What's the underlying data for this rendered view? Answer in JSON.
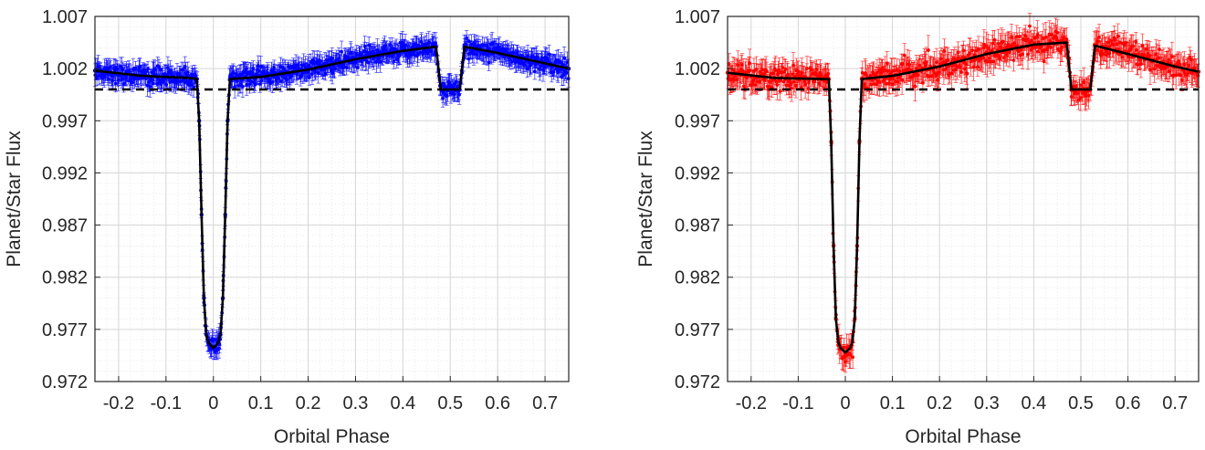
{
  "colors": {
    "background": "#ffffff",
    "axis": "#262626",
    "grid_major": "#d6d6d6",
    "grid_minor": "#ececec",
    "model": "#000000",
    "baseline": "#000000"
  },
  "chart_data": [
    {
      "type": "scatter",
      "xlabel": "Orbital Phase",
      "ylabel": "Planet/Star Flux",
      "xlim": [
        -0.25,
        0.75
      ],
      "ylim": [
        0.972,
        1.007
      ],
      "xticks": [
        -0.2,
        -0.1,
        0,
        0.1,
        0.2,
        0.3,
        0.4,
        0.5,
        0.6,
        0.7
      ],
      "xtick_labels": [
        "-0.2",
        "-0.1",
        "0",
        "0.1",
        "0.2",
        "0.3",
        "0.4",
        "0.5",
        "0.6",
        "0.7"
      ],
      "yticks": [
        0.972,
        0.977,
        0.982,
        0.987,
        0.992,
        0.997,
        1.002,
        1.007
      ],
      "ytick_labels": [
        "0.972",
        "0.977",
        "0.982",
        "0.987",
        "0.992",
        "0.997",
        "1.002",
        "1.007"
      ],
      "grid": true,
      "minor_grid": true,
      "series": [
        {
          "kind": "data-with-errorbars",
          "color": "#0000ff",
          "x": [
            -0.25,
            -0.2,
            -0.15,
            -0.1,
            -0.05,
            -0.035,
            -0.03,
            -0.025,
            -0.02,
            -0.015,
            -0.01,
            0,
            0.01,
            0.015,
            0.02,
            0.025,
            0.03,
            0.035,
            0.05,
            0.1,
            0.15,
            0.2,
            0.25,
            0.3,
            0.35,
            0.4,
            0.45,
            0.47,
            0.48,
            0.5,
            0.52,
            0.53,
            0.55,
            0.6,
            0.65,
            0.7,
            0.75
          ],
          "y": [
            1.0018,
            1.0015,
            1.0013,
            1.0012,
            1.0011,
            1.001,
            0.997,
            0.988,
            0.98,
            0.9765,
            0.9757,
            0.9752,
            0.9757,
            0.9765,
            0.98,
            0.988,
            0.997,
            1.001,
            1.0011,
            1.0012,
            1.0015,
            1.0019,
            1.0024,
            1.0029,
            1.0033,
            1.0037,
            1.004,
            1.0041,
            1.0,
            1.0,
            1.0,
            1.0041,
            1.004,
            1.0035,
            1.003,
            1.0025,
            1.002
          ],
          "error": 0.0009
        },
        {
          "kind": "model",
          "color": "#000000",
          "x": [
            -0.25,
            -0.15,
            -0.05,
            -0.035,
            -0.03,
            -0.025,
            -0.02,
            -0.015,
            -0.01,
            0,
            0.01,
            0.015,
            0.02,
            0.025,
            0.03,
            0.035,
            0.1,
            0.2,
            0.3,
            0.4,
            0.47,
            0.48,
            0.52,
            0.53,
            0.6,
            0.7,
            0.75
          ],
          "y": [
            1.0018,
            1.0013,
            1.0011,
            1.001,
            0.997,
            0.988,
            0.98,
            0.9765,
            0.9757,
            0.9752,
            0.9757,
            0.9765,
            0.98,
            0.988,
            0.997,
            1.001,
            1.0012,
            1.0019,
            1.0029,
            1.0037,
            1.0041,
            1.0,
            1.0,
            1.0041,
            1.0035,
            1.0025,
            1.002
          ]
        },
        {
          "kind": "baseline",
          "style": "dashed",
          "color": "#000000",
          "x": [
            -0.25,
            0.75
          ],
          "y": [
            1.0,
            1.0
          ]
        }
      ]
    },
    {
      "type": "scatter",
      "xlabel": "Orbital Phase",
      "ylabel": "Planet/Star Flux",
      "xlim": [
        -0.25,
        0.75
      ],
      "ylim": [
        0.972,
        1.007
      ],
      "xticks": [
        -0.2,
        -0.1,
        0,
        0.1,
        0.2,
        0.3,
        0.4,
        0.5,
        0.6,
        0.7
      ],
      "xtick_labels": [
        "-0.2",
        "-0.1",
        "0",
        "0.1",
        "0.2",
        "0.3",
        "0.4",
        "0.5",
        "0.6",
        "0.7"
      ],
      "yticks": [
        0.972,
        0.977,
        0.982,
        0.987,
        0.992,
        0.997,
        1.002,
        1.007
      ],
      "ytick_labels": [
        "0.972",
        "0.977",
        "0.982",
        "0.987",
        "0.992",
        "0.997",
        "1.002",
        "1.007"
      ],
      "grid": true,
      "minor_grid": true,
      "series": [
        {
          "kind": "data-with-errorbars",
          "color": "#ff0000",
          "x": [
            -0.25,
            -0.2,
            -0.15,
            -0.1,
            -0.05,
            -0.035,
            -0.03,
            -0.025,
            -0.02,
            -0.015,
            -0.01,
            0,
            0.01,
            0.015,
            0.02,
            0.025,
            0.03,
            0.035,
            0.05,
            0.1,
            0.15,
            0.2,
            0.25,
            0.3,
            0.35,
            0.4,
            0.45,
            0.47,
            0.48,
            0.5,
            0.52,
            0.53,
            0.55,
            0.6,
            0.65,
            0.7,
            0.75
          ],
          "y": [
            1.0016,
            1.0013,
            1.0011,
            1.001,
            1.001,
            1.001,
            0.995,
            0.985,
            0.978,
            0.9758,
            0.9752,
            0.9748,
            0.9752,
            0.9758,
            0.978,
            0.985,
            0.995,
            1.001,
            1.0011,
            1.0013,
            1.0017,
            1.0022,
            1.0028,
            1.0034,
            1.0039,
            1.0043,
            1.0045,
            1.0045,
            1.0,
            1.0,
            1.0,
            1.0042,
            1.004,
            1.0034,
            1.0028,
            1.0022,
            1.0017
          ],
          "error": 0.0012
        },
        {
          "kind": "model",
          "color": "#000000",
          "x": [
            -0.25,
            -0.15,
            -0.05,
            -0.035,
            -0.03,
            -0.025,
            -0.02,
            -0.015,
            -0.01,
            0,
            0.01,
            0.015,
            0.02,
            0.025,
            0.03,
            0.035,
            0.1,
            0.2,
            0.3,
            0.4,
            0.47,
            0.48,
            0.52,
            0.53,
            0.6,
            0.7,
            0.75
          ],
          "y": [
            1.0016,
            1.0011,
            1.001,
            1.001,
            0.995,
            0.985,
            0.978,
            0.9758,
            0.9752,
            0.9748,
            0.9752,
            0.9758,
            0.978,
            0.985,
            0.995,
            1.001,
            1.0013,
            1.0022,
            1.0034,
            1.0043,
            1.0045,
            1.0,
            1.0,
            1.0042,
            1.0034,
            1.0022,
            1.0017
          ]
        },
        {
          "kind": "baseline",
          "style": "dashed",
          "color": "#000000",
          "x": [
            -0.25,
            0.75
          ],
          "y": [
            1.0,
            1.0
          ]
        }
      ]
    }
  ]
}
